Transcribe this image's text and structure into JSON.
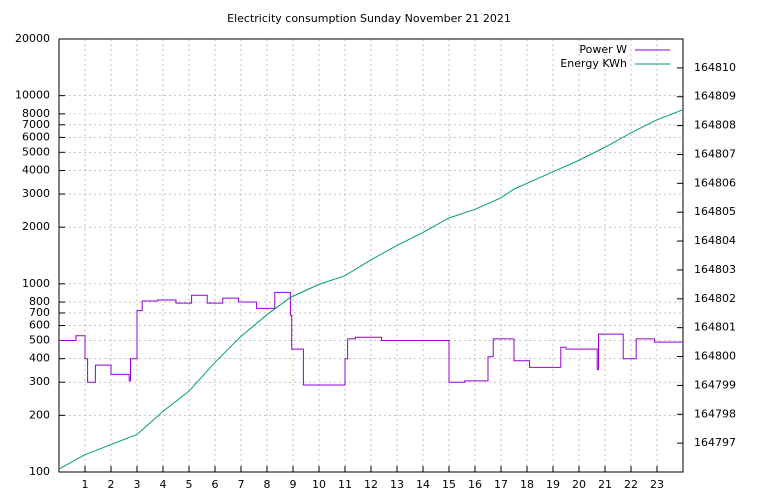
{
  "chart_data": {
    "type": "line",
    "title": "Electricity consumption Sunday November 21 2021",
    "xlim": [
      0,
      24
    ],
    "xticks": [
      1,
      2,
      3,
      4,
      5,
      6,
      7,
      8,
      9,
      10,
      11,
      12,
      13,
      14,
      15,
      16,
      17,
      18,
      19,
      20,
      21,
      22,
      23
    ],
    "ylim": [
      100,
      20000
    ],
    "yticks": [
      100,
      200,
      300,
      400,
      500,
      600,
      700,
      800,
      1000,
      2000,
      3000,
      4000,
      5000,
      6000,
      7000,
      8000,
      10000,
      20000
    ],
    "log_y": true,
    "y2lim": [
      164796,
      164811
    ],
    "y2ticks": [
      164797,
      164798,
      164799,
      164800,
      164801,
      164802,
      164803,
      164804,
      164805,
      164806,
      164807,
      164808,
      164809,
      164810
    ],
    "grid": true,
    "legend": "top-right",
    "series": [
      {
        "name": "Power W",
        "color": "#9400d3",
        "x": [
          0,
          0.65,
          0.65,
          1.0,
          1.0,
          1.1,
          1.1,
          1.4,
          1.4,
          2.0,
          2.0,
          2.7,
          2.7,
          2.75,
          2.75,
          3.0,
          3.0,
          3.2,
          3.2,
          3.8,
          3.8,
          4.5,
          4.5,
          5.1,
          5.1,
          5.7,
          5.7,
          6.3,
          6.3,
          6.9,
          6.9,
          7.6,
          7.6,
          8.3,
          8.3,
          8.9,
          8.9,
          8.95,
          8.95,
          9.4,
          9.4,
          11.0,
          11.0,
          11.1,
          11.1,
          11.4,
          11.4,
          12.4,
          12.4,
          15.0,
          15.0,
          15.6,
          15.6,
          16.5,
          16.5,
          16.7,
          16.7,
          17.5,
          17.5,
          18.1,
          18.1,
          19.3,
          19.3,
          19.5,
          19.5,
          20.7,
          20.7,
          20.75,
          20.75,
          21.7,
          21.7,
          22.2,
          22.2,
          22.9,
          22.9,
          24
        ],
        "values": [
          500,
          500,
          530,
          530,
          400,
          400,
          300,
          300,
          370,
          370,
          330,
          330,
          305,
          305,
          400,
          400,
          720,
          720,
          810,
          810,
          820,
          820,
          790,
          790,
          870,
          870,
          790,
          790,
          840,
          840,
          800,
          800,
          740,
          740,
          900,
          900,
          680,
          680,
          450,
          450,
          290,
          290,
          400,
          400,
          510,
          510,
          520,
          520,
          500,
          500,
          300,
          300,
          305,
          305,
          410,
          410,
          510,
          510,
          390,
          390,
          360,
          360,
          460,
          460,
          450,
          450,
          350,
          350,
          540,
          540,
          400,
          400,
          510,
          510,
          490,
          490
        ]
      },
      {
        "name": "Energy KWh",
        "color": "#009e73",
        "axis": "y2",
        "x": [
          0,
          1,
          2,
          3,
          4,
          5,
          6,
          7,
          8,
          8.9,
          10,
          11,
          12,
          13,
          14,
          15,
          16,
          17,
          17.5,
          18,
          19,
          20,
          21,
          22,
          23,
          24
        ],
        "values": [
          164796.1,
          164796.6,
          164796.95,
          164797.3,
          164798.1,
          164798.8,
          164799.8,
          164800.7,
          164801.45,
          164802.05,
          164802.5,
          164802.8,
          164803.35,
          164803.85,
          164804.3,
          164804.8,
          164805.1,
          164805.5,
          164805.8,
          164806.0,
          164806.4,
          164806.8,
          164807.25,
          164807.75,
          164808.2,
          164808.55
        ]
      }
    ]
  }
}
